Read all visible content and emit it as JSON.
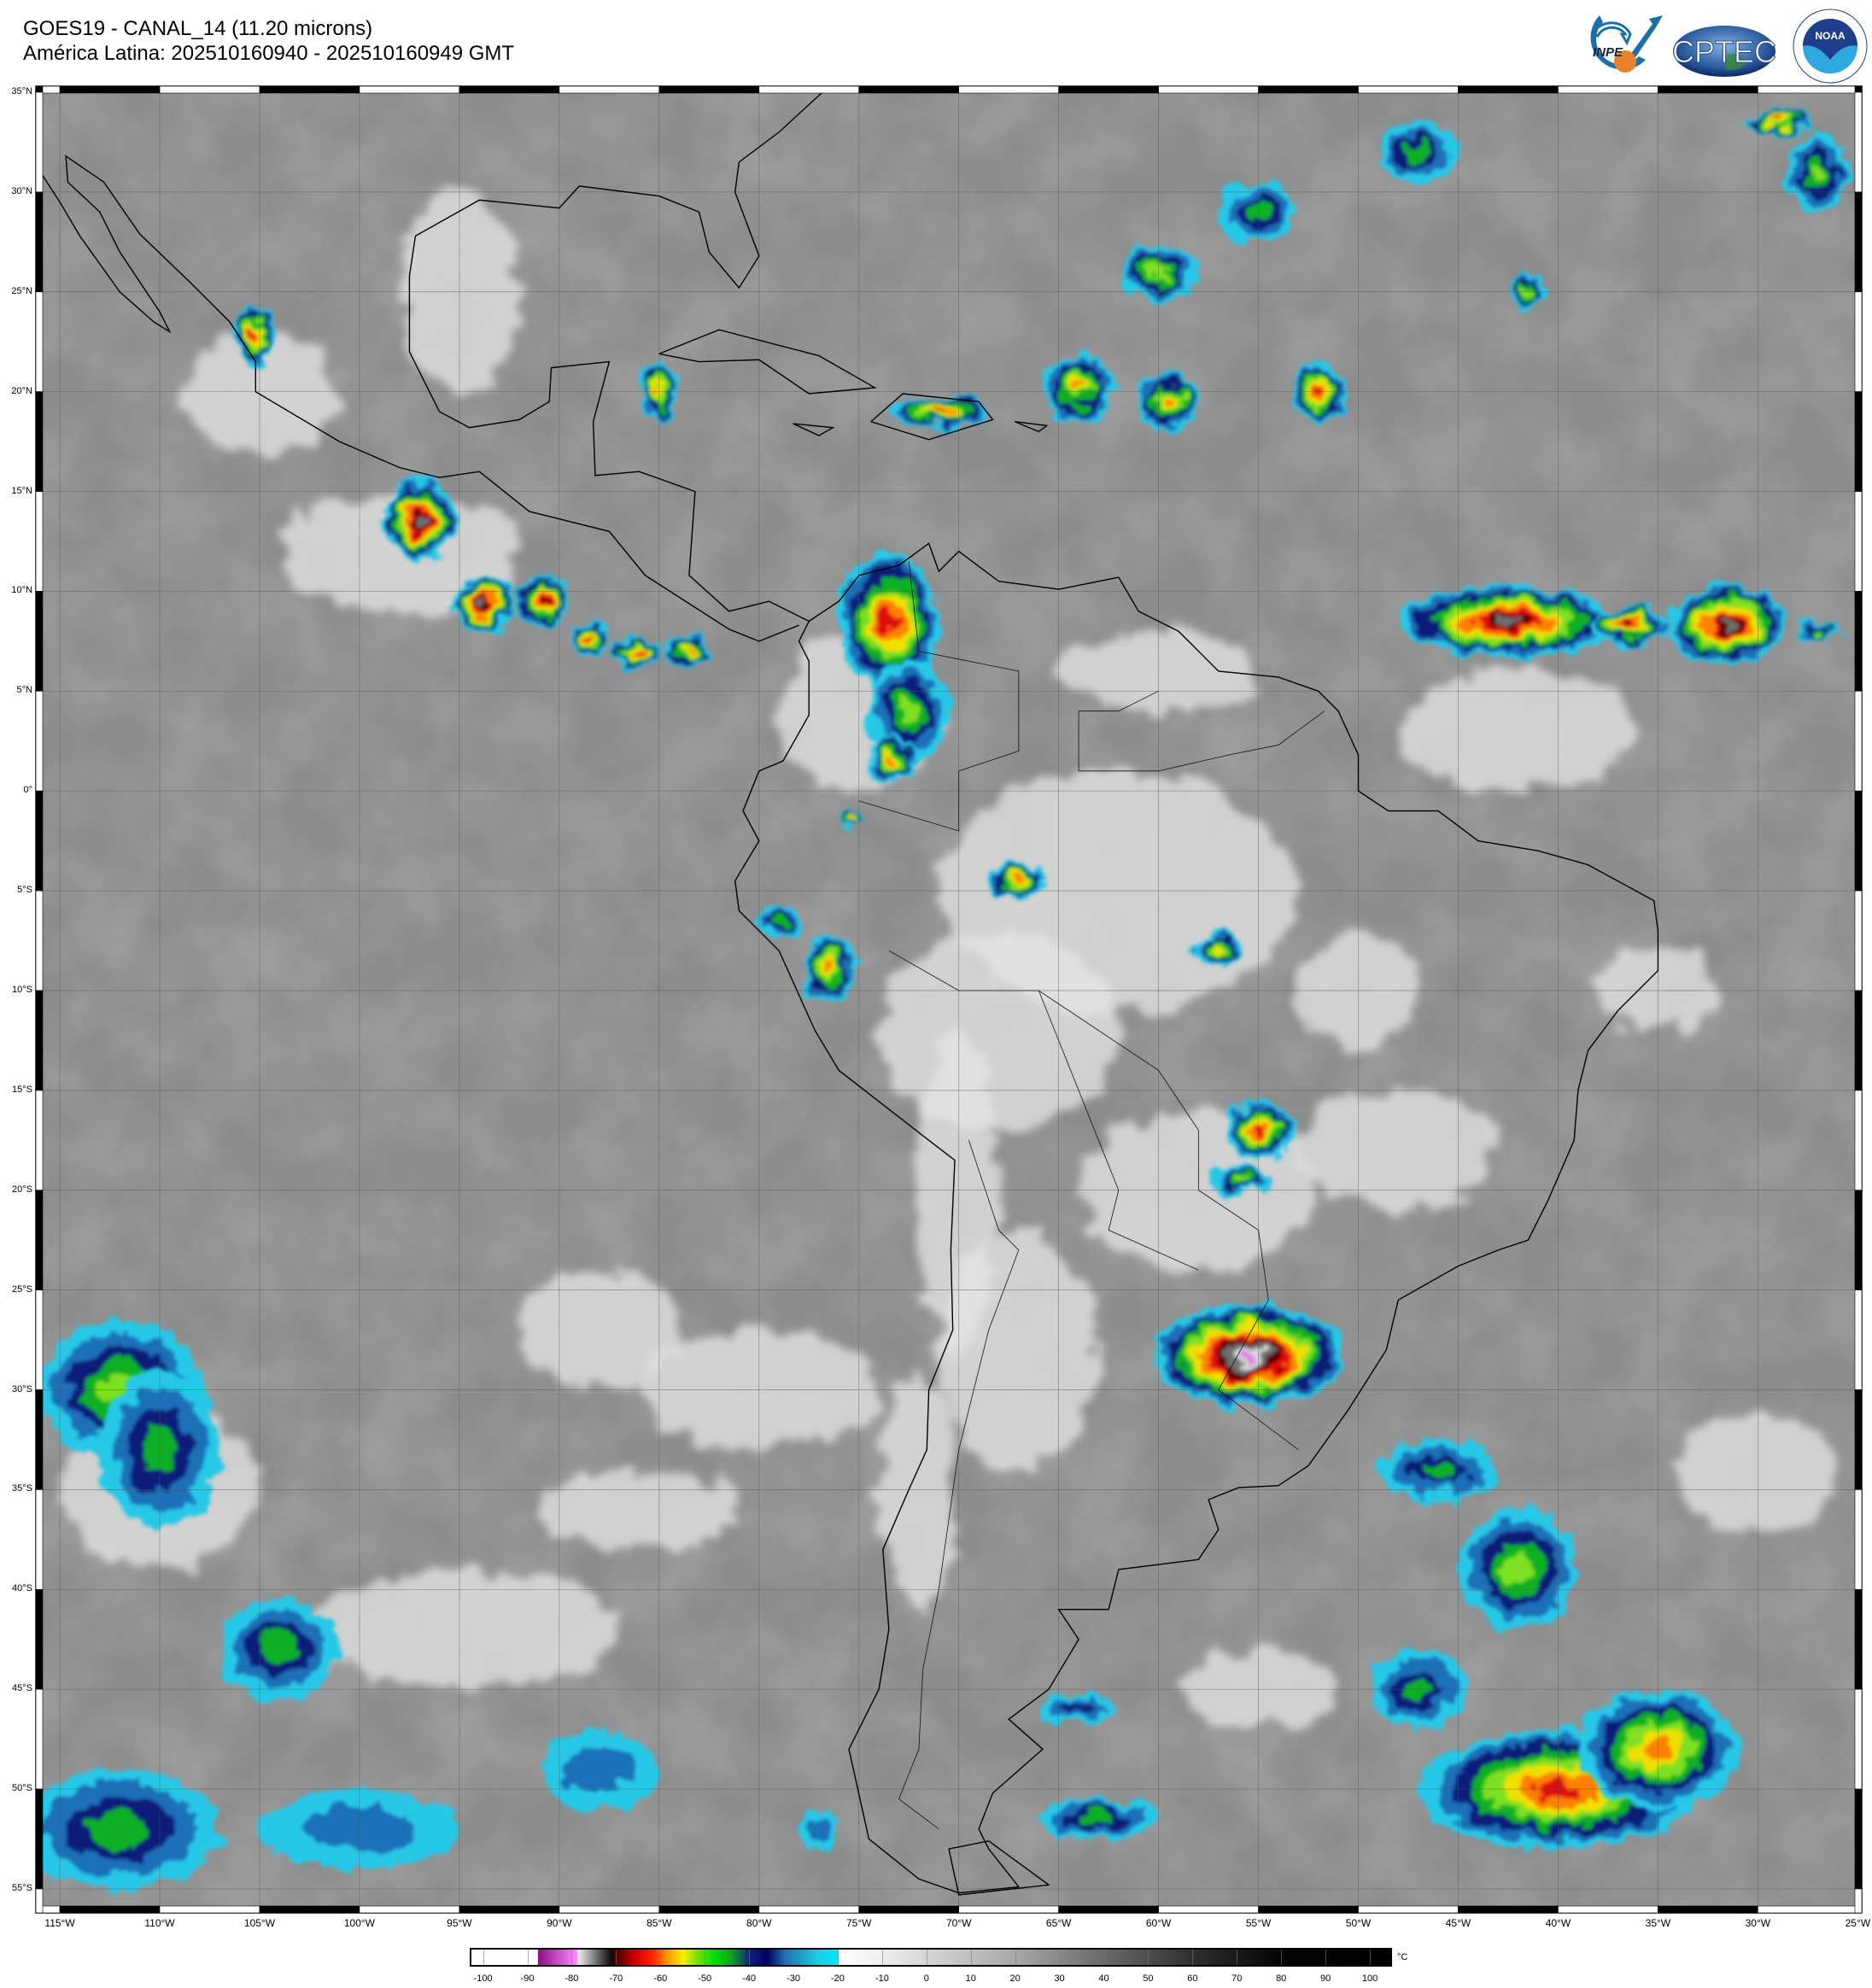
{
  "header": {
    "title": "GOES19 - CANAL_14 (11.20 microns)",
    "subtitle": "América Latina: 202510160940 - 202510160949 GMT"
  },
  "logos": [
    {
      "name": "INPE",
      "colors": [
        "#1a6fa8",
        "#e8832a"
      ]
    },
    {
      "name": "CPTEC",
      "colors": [
        "#2a5aa0",
        "#3b8a3a"
      ]
    },
    {
      "name": "NOAA",
      "colors": [
        "#1e3e8c",
        "#2fa8e0"
      ]
    }
  ],
  "map": {
    "projection": "equirectangular",
    "lon_range": [
      -116.2,
      -24.8
    ],
    "lat_range": [
      -56.2,
      35.3
    ],
    "grid_step_deg": 5,
    "grid": true,
    "lat_labels": [
      "35°N",
      "30°N",
      "25°N",
      "20°N",
      "15°N",
      "10°N",
      "5°N",
      "0°",
      "5°S",
      "10°S",
      "15°S",
      "20°S",
      "25°S",
      "30°S",
      "35°S",
      "40°S",
      "45°S",
      "50°S",
      "55°S"
    ],
    "lon_labels": [
      "115°W",
      "110°W",
      "105°W",
      "100°W",
      "95°W",
      "90°W",
      "85°W",
      "80°W",
      "75°W",
      "70°W",
      "65°W",
      "60°W",
      "55°W",
      "50°W",
      "45°W",
      "40°W",
      "35°W",
      "30°W",
      "25°W"
    ]
  },
  "colorbar": {
    "unit": "°C",
    "range": [
      -103,
      105
    ],
    "ticks": [
      "-100",
      "-90",
      "-80",
      "-70",
      "-60",
      "-50",
      "-40",
      "-30",
      "-20",
      "-10",
      "0",
      "10",
      "20",
      "30",
      "40",
      "50",
      "60",
      "70",
      "80",
      "90",
      "100"
    ],
    "stops": [
      [
        -103,
        "#ffffff"
      ],
      [
        -88,
        "#ffffff"
      ],
      [
        -87.9,
        "#8a0f8a"
      ],
      [
        -79,
        "#ff90ff"
      ],
      [
        -78.9,
        "#f0f0f0"
      ],
      [
        -71.5,
        "#101010"
      ],
      [
        -71,
        "#300000"
      ],
      [
        -66,
        "#d00000"
      ],
      [
        -62,
        "#ff2000"
      ],
      [
        -59,
        "#ff9000"
      ],
      [
        -55,
        "#f8f000"
      ],
      [
        -52,
        "#80e000"
      ],
      [
        -48,
        "#00e000"
      ],
      [
        -44,
        "#10a020"
      ],
      [
        -40,
        "#102080"
      ],
      [
        -36,
        "#000060"
      ],
      [
        -32,
        "#2070b0"
      ],
      [
        -25,
        "#20c8e0"
      ],
      [
        -20,
        "#00e8ff"
      ],
      [
        -19.9,
        "#ffffff"
      ],
      [
        -10,
        "#eeeeee"
      ],
      [
        0,
        "#d6d6d6"
      ],
      [
        20,
        "#a8a8a8"
      ],
      [
        40,
        "#6a6a6a"
      ],
      [
        60,
        "#303030"
      ],
      [
        80,
        "#050505"
      ],
      [
        105,
        "#000000"
      ]
    ]
  }
}
